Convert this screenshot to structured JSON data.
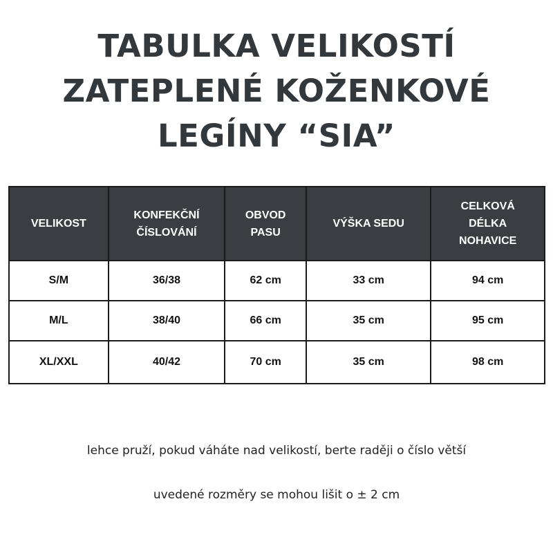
{
  "title": {
    "lines": [
      "TABULKA VELIKOSTÍ",
      "ZATEPLENÉ KOŽENKOVÉ",
      "LEGÍNY “SIA”"
    ]
  },
  "table": {
    "headers": [
      [
        "VELIKOST"
      ],
      [
        "KONFEKČNÍ",
        "ČÍSLOVÁNÍ"
      ],
      [
        "OBVOD",
        "PASU"
      ],
      [
        "VÝŠKA SEDU"
      ],
      [
        "CELKOVÁ",
        "DÉLKA",
        "NOHAVICE"
      ]
    ],
    "rows": [
      [
        "S/M",
        "36/38",
        "62 cm",
        "33 cm",
        "94 cm"
      ],
      [
        "M/L",
        "38/40",
        "66 cm",
        "35 cm",
        "95 cm"
      ],
      [
        "XL/XXL",
        "40/42",
        "70 cm",
        "35 cm",
        "98 cm"
      ]
    ]
  },
  "notes": [
    "lehce pruží, pokud váháte nad velikostí, berte raději  o číslo větší",
    "uvedené rozměry se mohou lišit o ± 2 cm"
  ],
  "colors": {
    "header_bg": "#3a3e42",
    "title": "#33383d"
  }
}
